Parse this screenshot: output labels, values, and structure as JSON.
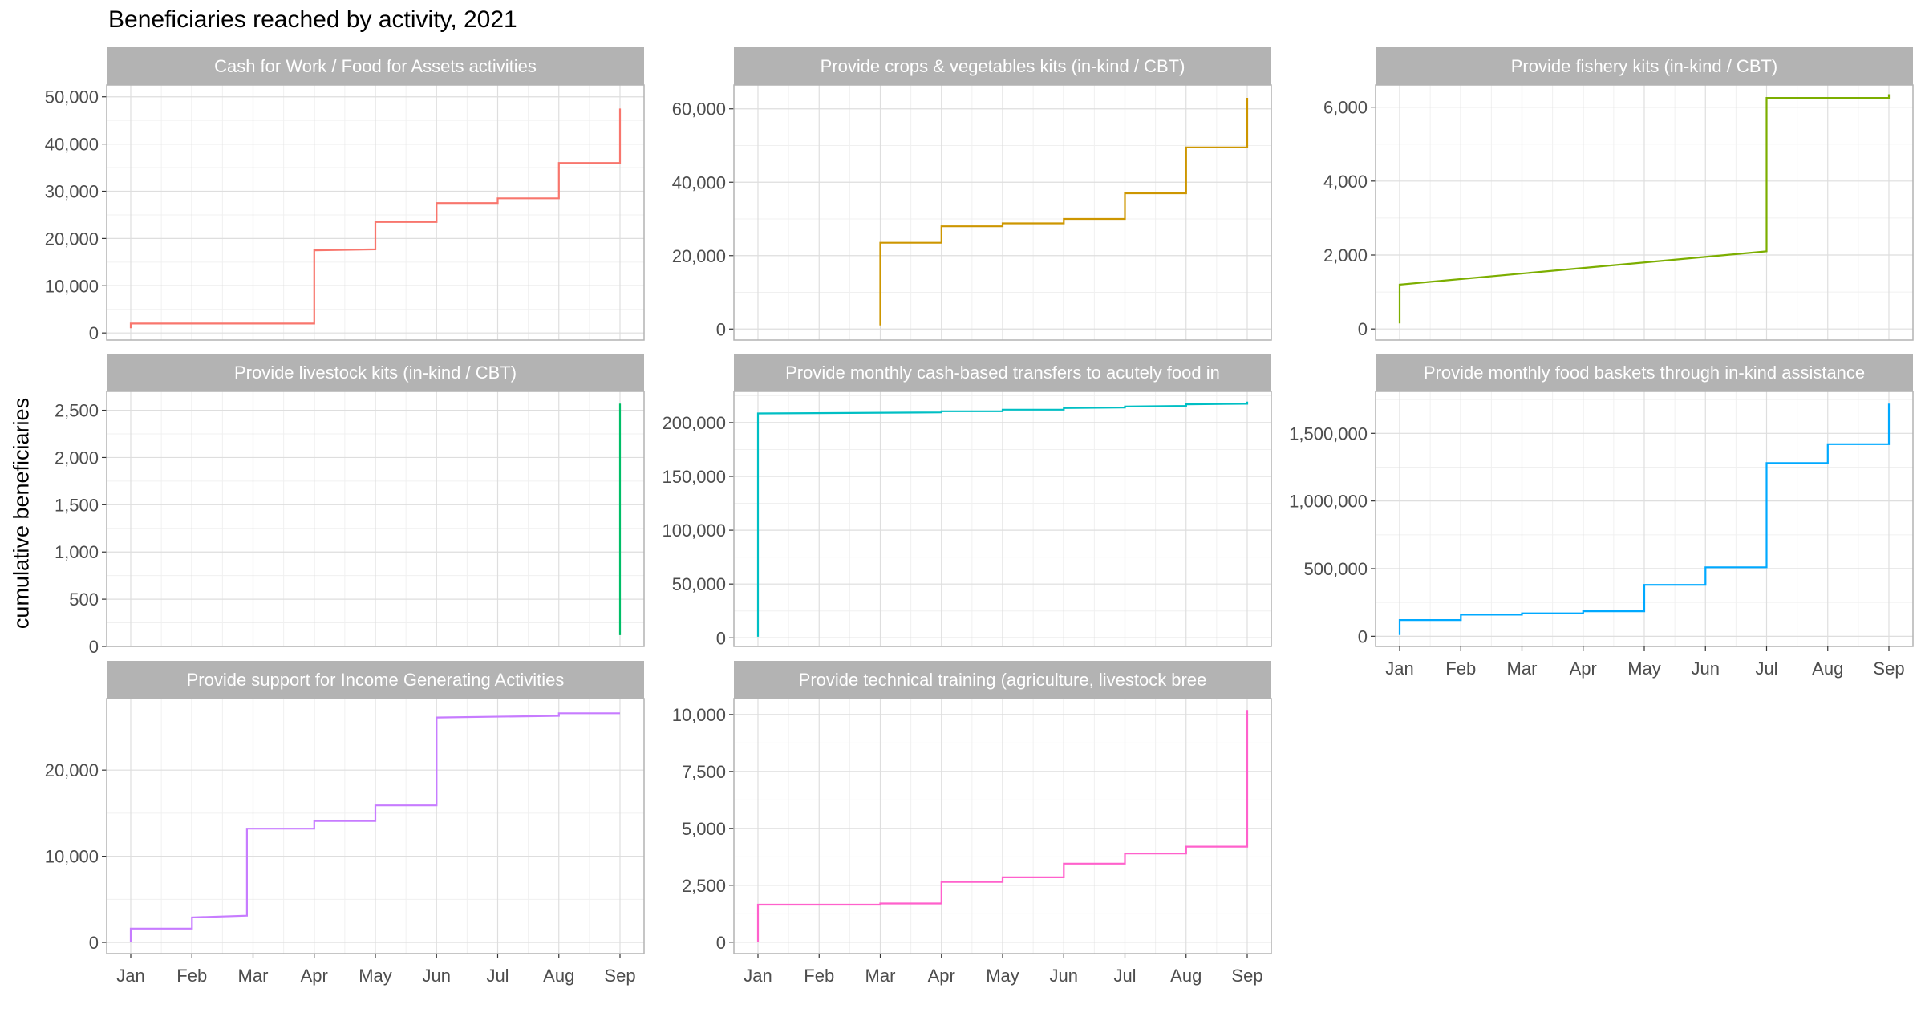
{
  "figure": {
    "title": "Beneficiaries reached by activity, 2021",
    "ylabel": "cumulative beneficiaries"
  },
  "theme": {
    "strip_fill": "#b3b3b3",
    "strip_text": "#ffffff",
    "panel_border": "#b3b3b3",
    "grid_major": "#dedede",
    "grid_minor": "#f0f0f0",
    "tick_text": "#4d4d4d"
  },
  "chart_data": {
    "type": "line",
    "style": "step",
    "layout": "facet_wrap, 3 columns, independent y scales",
    "x_ticks": [
      "Jan",
      "Feb",
      "Mar",
      "Apr",
      "May",
      "Jun",
      "Jul",
      "Aug",
      "Sep"
    ],
    "xlim": [
      0,
      8
    ],
    "panels": [
      {
        "title": "Cash for Work / Food for Assets activities",
        "color": "#F8766D",
        "ylim": [
          -1500,
          52500
        ],
        "y_ticks": [
          0,
          10000,
          20000,
          30000,
          40000,
          50000
        ],
        "y_tick_labels": [
          "0",
          "10,000",
          "20,000",
          "30,000",
          "40,000",
          "50,000"
        ],
        "show_x_axis": false,
        "points": [
          [
            0,
            1000
          ],
          [
            0,
            2000
          ],
          [
            3,
            2000
          ],
          [
            3,
            17500
          ],
          [
            4,
            17700
          ],
          [
            4,
            23500
          ],
          [
            5,
            23500
          ],
          [
            5,
            27500
          ],
          [
            6,
            27500
          ],
          [
            6,
            28500
          ],
          [
            7,
            28500
          ],
          [
            7,
            36000
          ],
          [
            8,
            36000
          ],
          [
            8,
            47500
          ]
        ]
      },
      {
        "title": "Provide crops & vegetables kits (in-kind / CBT)",
        "color": "#CD9600",
        "ylim": [
          -3000,
          66500
        ],
        "y_ticks": [
          0,
          20000,
          40000,
          60000
        ],
        "y_tick_labels": [
          "0",
          "20,000",
          "40,000",
          "60,000"
        ],
        "show_x_axis": false,
        "points": [
          [
            2,
            1000
          ],
          [
            2,
            23500
          ],
          [
            3,
            23500
          ],
          [
            3,
            28000
          ],
          [
            4,
            28000
          ],
          [
            4,
            28800
          ],
          [
            5,
            28800
          ],
          [
            5,
            30000
          ],
          [
            6,
            30000
          ],
          [
            6,
            37000
          ],
          [
            7,
            37000
          ],
          [
            7,
            49500
          ],
          [
            8,
            49500
          ],
          [
            8,
            63000
          ]
        ]
      },
      {
        "title": "Provide fishery kits (in-kind / CBT)",
        "color": "#7CAE00",
        "ylim": [
          -300,
          6600
        ],
        "y_ticks": [
          0,
          2000,
          4000,
          6000
        ],
        "y_tick_labels": [
          "0",
          "2,000",
          "4,000",
          "6,000"
        ],
        "show_x_axis": false,
        "points": [
          [
            0,
            150
          ],
          [
            0,
            1200
          ],
          [
            6,
            2100
          ],
          [
            6,
            6250
          ],
          [
            8,
            6250
          ],
          [
            8,
            6350
          ]
        ]
      },
      {
        "title": "Provide livestock kits (in-kind / CBT)",
        "color": "#00BE67",
        "ylim": [
          0,
          2700
        ],
        "y_ticks": [
          0,
          500,
          1000,
          1500,
          2000,
          2500
        ],
        "y_tick_labels": [
          "0",
          "500",
          "1,000",
          "1,500",
          "2,000",
          "2,500"
        ],
        "show_x_axis": false,
        "points": [
          [
            8,
            120
          ],
          [
            8,
            2570
          ]
        ]
      },
      {
        "title": "Provide monthly cash-based transfers to acutely food in",
        "color": "#00BFC4",
        "ylim": [
          -8000,
          229000
        ],
        "y_ticks": [
          0,
          50000,
          100000,
          150000,
          200000
        ],
        "y_tick_labels": [
          "0",
          "50,000",
          "100,000",
          "150,000",
          "200,000"
        ],
        "show_x_axis": false,
        "points": [
          [
            0,
            1000
          ],
          [
            0,
            208500
          ],
          [
            3,
            209500
          ],
          [
            3,
            210500
          ],
          [
            4,
            210500
          ],
          [
            4,
            212000
          ],
          [
            5,
            212000
          ],
          [
            5,
            213500
          ],
          [
            6,
            214000
          ],
          [
            6,
            215000
          ],
          [
            7,
            215500
          ],
          [
            7,
            217000
          ],
          [
            8,
            217500
          ],
          [
            8,
            219500
          ]
        ]
      },
      {
        "title": "Provide monthly food baskets through in-kind assistance",
        "color": "#00A9FF",
        "ylim": [
          -75000,
          1810000
        ],
        "y_ticks": [
          0,
          500000,
          1000000,
          1500000
        ],
        "y_tick_labels": [
          "0",
          "500,000",
          "1,000,000",
          "1,500,000"
        ],
        "show_x_axis": true,
        "points": [
          [
            0,
            10000
          ],
          [
            0,
            120000
          ],
          [
            1,
            120000
          ],
          [
            1,
            160000
          ],
          [
            2,
            160000
          ],
          [
            2,
            170000
          ],
          [
            3,
            170000
          ],
          [
            3,
            185000
          ],
          [
            4,
            185000
          ],
          [
            4,
            380000
          ],
          [
            5,
            380000
          ],
          [
            5,
            510000
          ],
          [
            6,
            510000
          ],
          [
            6,
            1280000
          ],
          [
            7,
            1280000
          ],
          [
            7,
            1420000
          ],
          [
            8,
            1420000
          ],
          [
            8,
            1720000
          ]
        ]
      },
      {
        "title": "Provide support for Income Generating Activities",
        "color": "#C77CFF",
        "ylim": [
          -1300,
          28300
        ],
        "y_ticks": [
          0,
          10000,
          20000
        ],
        "y_tick_labels": [
          "0",
          "10,000",
          "20,000"
        ],
        "show_x_axis": true,
        "points": [
          [
            0,
            0
          ],
          [
            0,
            1600
          ],
          [
            1,
            1600
          ],
          [
            1,
            2900
          ],
          [
            1.9,
            3100
          ],
          [
            1.9,
            13200
          ],
          [
            3,
            13200
          ],
          [
            3,
            14100
          ],
          [
            4,
            14100
          ],
          [
            4,
            15900
          ],
          [
            5,
            15900
          ],
          [
            5,
            26100
          ],
          [
            7,
            26300
          ],
          [
            7,
            26600
          ],
          [
            8,
            26600
          ]
        ]
      },
      {
        "title": "Provide technical training (agriculture, livestock bree",
        "color": "#FF61CC",
        "ylim": [
          -500,
          10700
        ],
        "y_ticks": [
          0,
          2500,
          5000,
          7500,
          10000
        ],
        "y_tick_labels": [
          "0",
          "2,500",
          "5,000",
          "7,500",
          "10,000"
        ],
        "show_x_axis": true,
        "points": [
          [
            0,
            0
          ],
          [
            0,
            1650
          ],
          [
            2,
            1650
          ],
          [
            2,
            1700
          ],
          [
            3,
            1700
          ],
          [
            3,
            2650
          ],
          [
            4,
            2650
          ],
          [
            4,
            2850
          ],
          [
            5,
            2850
          ],
          [
            5,
            3450
          ],
          [
            6,
            3450
          ],
          [
            6,
            3900
          ],
          [
            7,
            3900
          ],
          [
            7,
            4200
          ],
          [
            8,
            4200
          ],
          [
            8,
            10200
          ]
        ]
      }
    ]
  }
}
